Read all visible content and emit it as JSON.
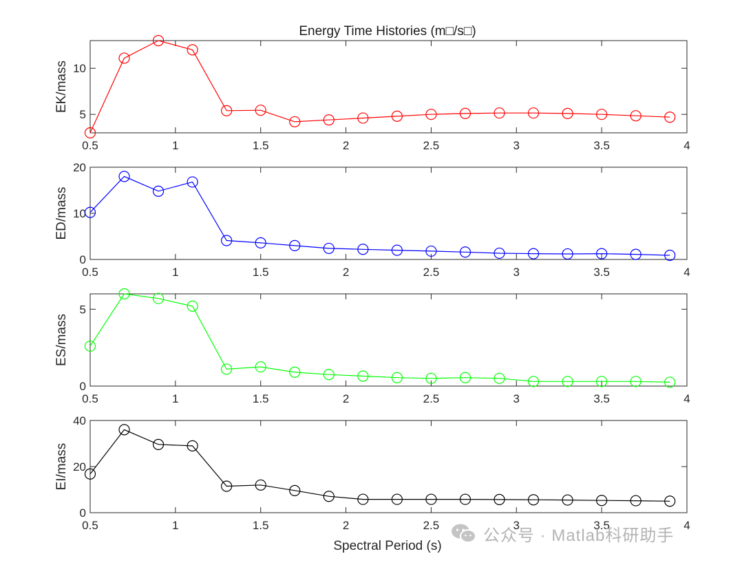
{
  "figure": {
    "title": "Energy Time Histories (m□/s□)",
    "xlabel": "Spectral Period (s)"
  },
  "watermark": {
    "text": "公众号 · Matlab科研助手",
    "icon": "wechat-icon"
  },
  "chart_data": [
    {
      "type": "line",
      "title": "Energy Time Histories (m□/s□)",
      "xlabel": "",
      "ylabel": "EK/mass",
      "color": "#ff0000",
      "marker": "circle",
      "xlim": [
        0.5,
        4
      ],
      "ylim": [
        3,
        13
      ],
      "xticks": [
        0.5,
        1,
        1.5,
        2,
        2.5,
        3,
        3.5,
        4
      ],
      "xtick_labels": [
        "0.5",
        "1",
        "1.5",
        "2",
        "2.5",
        "3",
        "3.5",
        "4"
      ],
      "yticks": [
        5,
        10
      ],
      "ytick_labels": [
        "5",
        "10"
      ],
      "x": [
        0.5,
        0.7,
        0.9,
        1.1,
        1.3,
        1.5,
        1.7,
        1.9,
        2.1,
        2.3,
        2.5,
        2.7,
        2.9,
        3.1,
        3.3,
        3.5,
        3.7,
        3.9
      ],
      "values": [
        3.0,
        11.1,
        13.0,
        12.0,
        5.4,
        5.45,
        4.2,
        4.4,
        4.6,
        4.8,
        5.0,
        5.1,
        5.15,
        5.15,
        5.1,
        5.0,
        4.85,
        4.7
      ]
    },
    {
      "type": "line",
      "title": "",
      "xlabel": "",
      "ylabel": "ED/mass",
      "color": "#0000ff",
      "marker": "circle",
      "xlim": [
        0.5,
        4
      ],
      "ylim": [
        0,
        20
      ],
      "xticks": [
        0.5,
        1,
        1.5,
        2,
        2.5,
        3,
        3.5,
        4
      ],
      "xtick_labels": [
        "0.5",
        "1",
        "1.5",
        "2",
        "2.5",
        "3",
        "3.5",
        "4"
      ],
      "yticks": [
        0,
        10,
        20
      ],
      "ytick_labels": [
        "0",
        "10",
        "20"
      ],
      "x": [
        0.5,
        0.7,
        0.9,
        1.1,
        1.3,
        1.5,
        1.7,
        1.9,
        2.1,
        2.3,
        2.5,
        2.7,
        2.9,
        3.1,
        3.3,
        3.5,
        3.7,
        3.9
      ],
      "values": [
        10.2,
        18.0,
        14.8,
        16.8,
        4.1,
        3.6,
        3.0,
        2.4,
        2.2,
        2.0,
        1.8,
        1.6,
        1.35,
        1.25,
        1.2,
        1.25,
        1.1,
        0.9
      ]
    },
    {
      "type": "line",
      "title": "",
      "xlabel": "",
      "ylabel": "ES/mass",
      "color": "#00ff00",
      "marker": "circle",
      "xlim": [
        0.5,
        4
      ],
      "ylim": [
        0,
        6
      ],
      "xticks": [
        0.5,
        1,
        1.5,
        2,
        2.5,
        3,
        3.5,
        4
      ],
      "xtick_labels": [
        "0.5",
        "1",
        "1.5",
        "2",
        "2.5",
        "3",
        "3.5",
        "4"
      ],
      "yticks": [
        0,
        5
      ],
      "ytick_labels": [
        "0",
        "5"
      ],
      "x": [
        0.5,
        0.7,
        0.9,
        1.1,
        1.3,
        1.5,
        1.7,
        1.9,
        2.1,
        2.3,
        2.5,
        2.7,
        2.9,
        3.1,
        3.3,
        3.5,
        3.7,
        3.9
      ],
      "values": [
        2.6,
        6.0,
        5.7,
        5.2,
        1.1,
        1.25,
        0.9,
        0.75,
        0.65,
        0.55,
        0.5,
        0.55,
        0.5,
        0.3,
        0.3,
        0.3,
        0.3,
        0.25
      ]
    },
    {
      "type": "line",
      "title": "",
      "xlabel": "Spectral Period (s)",
      "ylabel": "EI/mass",
      "color": "#000000",
      "marker": "circle",
      "xlim": [
        0.5,
        4
      ],
      "ylim": [
        0,
        40
      ],
      "xticks": [
        0.5,
        1,
        1.5,
        2,
        2.5,
        3,
        3.5,
        4
      ],
      "xtick_labels": [
        "0.5",
        "1",
        "1.5",
        "2",
        "2.5",
        "3",
        "3.5",
        "4"
      ],
      "yticks": [
        0,
        20,
        40
      ],
      "ytick_labels": [
        "0",
        "20",
        "40"
      ],
      "x": [
        0.5,
        0.7,
        0.9,
        1.1,
        1.3,
        1.5,
        1.7,
        1.9,
        2.1,
        2.3,
        2.5,
        2.7,
        2.9,
        3.1,
        3.3,
        3.5,
        3.7,
        3.9
      ],
      "values": [
        16.8,
        36.0,
        29.6,
        29.0,
        11.5,
        12.0,
        9.6,
        7.1,
        5.8,
        5.8,
        5.8,
        5.8,
        5.7,
        5.6,
        5.5,
        5.3,
        5.2,
        5.0
      ]
    }
  ]
}
